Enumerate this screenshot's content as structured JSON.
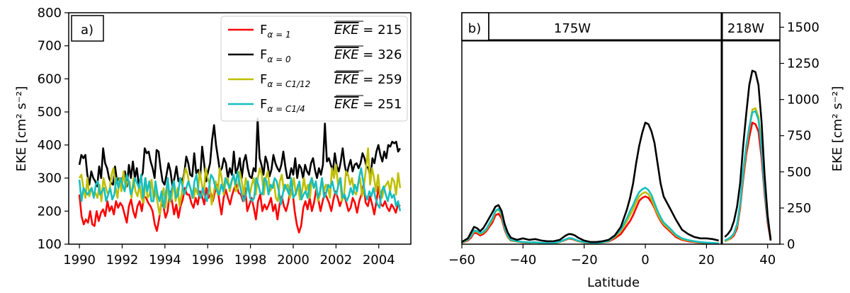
{
  "colors": {
    "red": "#ff0000",
    "black": "#000000",
    "olive": "#bfbf00",
    "cyan": "#17bebf"
  },
  "chart_data": [
    {
      "type": "line",
      "panel_label": "a)",
      "ylabel": "EKE [cm² s⁻²]",
      "xlim": [
        1989.5,
        2005.5
      ],
      "ylim": [
        100,
        800
      ],
      "xticks": [
        1990,
        1992,
        1994,
        1996,
        1998,
        2000,
        2002,
        2004
      ],
      "yticks": [
        100,
        200,
        300,
        400,
        500,
        600,
        700,
        800
      ],
      "legend_position": "top-right",
      "series": [
        {
          "name": "F_{α=1}",
          "sub": "α = 1",
          "stat": "EKE = 215",
          "color": "#ff0000",
          "values": [
            250,
            185,
            160,
            175,
            165,
            200,
            160,
            155,
            200,
            170,
            195,
            205,
            185,
            230,
            200,
            215,
            190,
            230,
            210,
            225,
            215,
            190,
            165,
            215,
            235,
            200,
            180,
            215,
            230,
            200,
            245,
            240,
            225,
            215,
            200,
            160,
            140,
            175,
            220,
            215,
            180,
            200,
            260,
            230,
            190,
            220,
            180,
            215,
            235,
            270,
            250,
            250,
            225,
            210,
            240,
            220,
            260,
            245,
            220,
            270,
            240,
            255,
            230,
            260,
            280,
            230,
            190,
            240,
            265,
            240,
            220,
            250,
            270,
            280,
            255,
            250,
            230,
            270,
            200,
            220,
            240,
            210,
            175,
            230,
            250,
            200,
            220,
            205,
            220,
            240,
            200,
            220,
            175,
            220,
            245,
            215,
            200,
            225,
            265,
            260,
            200,
            160,
            135,
            155,
            210,
            230,
            205,
            240,
            200,
            225,
            265,
            235,
            200,
            230,
            255,
            240,
            225,
            200,
            235,
            260,
            240,
            215,
            235,
            250,
            225,
            200,
            210,
            240,
            225,
            195,
            230,
            250,
            280,
            225,
            215,
            245,
            220,
            190,
            230,
            275,
            220,
            215,
            230,
            210,
            200,
            220,
            210,
            195,
            220,
            215
          ]
        },
        {
          "name": "F_{α=0}",
          "sub": "α = 0",
          "stat": "EKE = 326",
          "color": "#000000",
          "values": [
            340,
            370,
            360,
            370,
            310,
            280,
            320,
            300,
            290,
            275,
            335,
            300,
            390,
            345,
            330,
            300,
            285,
            280,
            335,
            290,
            300,
            285,
            305,
            320,
            275,
            340,
            300,
            350,
            300,
            330,
            280,
            300,
            315,
            390,
            375,
            380,
            350,
            330,
            300,
            385,
            380,
            330,
            290,
            280,
            310,
            345,
            320,
            275,
            300,
            335,
            290,
            300,
            290,
            315,
            365,
            345,
            310,
            305,
            375,
            315,
            325,
            300,
            395,
            345,
            290,
            320,
            345,
            415,
            460,
            400,
            360,
            320,
            330,
            360,
            345,
            300,
            330,
            310,
            380,
            315,
            330,
            360,
            300,
            350,
            370,
            330,
            305,
            300,
            330,
            320,
            480,
            360,
            340,
            310,
            365,
            345,
            305,
            325,
            370,
            345,
            330,
            320,
            340,
            380,
            335,
            300,
            300,
            330,
            310,
            360,
            300,
            340,
            330,
            300,
            340,
            320,
            310,
            345,
            360,
            325,
            300,
            330,
            310,
            340,
            465,
            350,
            360,
            340,
            320,
            375,
            335,
            320,
            350,
            390,
            340,
            310,
            335,
            355,
            320,
            340,
            345,
            330,
            345,
            375,
            360,
            335,
            330,
            300,
            360,
            345,
            380,
            400,
            370,
            350,
            380,
            360,
            400,
            395,
            410,
            405,
            410,
            380,
            390
          ]
        },
        {
          "name": "F_{α=C1/12}",
          "sub": "α = C1/12",
          "stat": "EKE = 259",
          "color": "#bfbf00",
          "values": [
            300,
            310,
            270,
            240,
            300,
            245,
            270,
            250,
            255,
            240,
            280,
            230,
            300,
            275,
            255,
            260,
            310,
            330,
            275,
            240,
            300,
            260,
            320,
            270,
            290,
            290,
            240,
            300,
            260,
            245,
            280,
            240,
            225,
            300,
            240,
            250,
            295,
            235,
            260,
            225,
            190,
            230,
            270,
            210,
            290,
            225,
            240,
            290,
            230,
            270,
            215,
            250,
            300,
            330,
            310,
            275,
            260,
            240,
            270,
            250,
            320,
            285,
            250,
            330,
            300,
            280,
            220,
            255,
            290,
            250,
            330,
            300,
            250,
            290,
            300,
            260,
            290,
            310,
            260,
            270,
            320,
            290,
            250,
            300,
            270,
            250,
            280,
            300,
            250,
            300,
            330,
            310,
            250,
            300,
            320,
            260,
            270,
            290,
            240,
            230,
            290,
            310,
            260,
            275,
            280,
            240,
            265,
            300,
            250,
            280,
            235,
            255,
            300,
            260,
            280,
            240,
            300,
            270,
            285,
            230,
            250,
            300,
            260,
            280,
            270,
            240,
            330,
            300,
            340,
            280,
            300,
            230,
            250,
            320,
            310,
            280,
            300,
            260,
            250,
            280,
            300,
            245,
            280,
            330,
            390,
            280,
            330,
            300,
            260,
            310,
            250,
            240,
            270,
            280,
            290,
            260,
            300,
            290,
            250,
            315,
            270
          ]
        },
        {
          "name": "F_{α=C1/4}",
          "sub": "α = C1/4",
          "stat": "EKE = 251",
          "color": "#17bebf",
          "values": [
            295,
            230,
            270,
            260,
            250,
            260,
            270,
            240,
            280,
            290,
            250,
            260,
            270,
            230,
            250,
            270,
            235,
            250,
            300,
            270,
            300,
            280,
            260,
            310,
            290,
            250,
            270,
            300,
            285,
            270,
            310,
            240,
            300,
            260,
            290,
            230,
            230,
            290,
            250,
            230,
            260,
            210,
            250,
            300,
            230,
            270,
            290,
            240,
            250,
            300,
            280,
            250,
            270,
            290,
            270,
            240,
            290,
            310,
            255,
            240,
            270,
            245,
            230,
            270,
            310,
            300,
            275,
            260,
            250,
            280,
            260,
            300,
            285,
            270,
            290,
            310,
            280,
            320,
            280,
            250,
            230,
            250,
            290,
            240,
            230,
            240,
            300,
            280,
            255,
            250,
            300,
            290,
            250,
            280,
            270,
            300,
            290,
            260,
            220,
            255,
            280,
            265,
            250,
            300,
            240,
            250,
            270,
            290,
            235,
            250,
            260,
            240,
            280,
            300,
            270,
            290,
            240,
            260,
            300,
            240,
            255,
            280,
            270,
            290,
            260,
            250,
            280,
            300,
            240,
            250,
            230,
            245,
            270,
            250,
            280,
            260,
            300,
            330,
            290,
            250,
            235,
            260,
            245,
            270,
            240,
            220,
            210,
            260,
            275,
            250,
            230,
            260,
            240,
            250,
            215,
            230,
            200
          ]
        }
      ]
    },
    {
      "type": "line",
      "panel_label": "b)",
      "section_labels": [
        "175W",
        "218W"
      ],
      "xlabel": "Latitude",
      "ylabel": "EKE [cm² s⁻²]",
      "xlim": [
        -60,
        44
      ],
      "ylim": [
        0,
        1600
      ],
      "xticks": [
        -60,
        -40,
        -20,
        0,
        20,
        40
      ],
      "yticks": [
        0,
        250,
        500,
        750,
        1000,
        1250,
        1500
      ],
      "divider_lat": 25,
      "series_175W": {
        "lat": [
          -60,
          -58,
          -57,
          -56,
          -55,
          -54,
          -53,
          -52,
          -50,
          -49,
          -48,
          -47,
          -46,
          -45,
          -44,
          -42,
          -40,
          -38,
          -36,
          -34,
          -32,
          -30,
          -28,
          -26,
          -25,
          -24,
          -23,
          -22,
          -20,
          -18,
          -16,
          -14,
          -12,
          -10,
          -8,
          -6,
          -5,
          -4,
          -3,
          -2,
          -1,
          0,
          1,
          2,
          3,
          4,
          5,
          6,
          8,
          10,
          12,
          14,
          16,
          18,
          20,
          22,
          24
        ],
        "red": [
          10,
          25,
          45,
          80,
          75,
          60,
          70,
          90,
          150,
          200,
          210,
          180,
          100,
          50,
          25,
          18,
          12,
          10,
          12,
          8,
          5,
          5,
          15,
          30,
          38,
          35,
          28,
          20,
          12,
          8,
          8,
          12,
          18,
          40,
          70,
          130,
          160,
          200,
          250,
          300,
          320,
          330,
          320,
          290,
          250,
          200,
          160,
          130,
          90,
          50,
          30,
          20,
          15,
          10,
          8,
          5,
          3
        ],
        "black": [
          15,
          40,
          80,
          120,
          110,
          90,
          110,
          145,
          220,
          260,
          270,
          230,
          140,
          80,
          45,
          30,
          40,
          30,
          35,
          25,
          20,
          20,
          30,
          60,
          70,
          68,
          60,
          45,
          25,
          15,
          15,
          20,
          30,
          60,
          120,
          240,
          320,
          420,
          560,
          680,
          770,
          840,
          830,
          780,
          700,
          560,
          420,
          330,
          250,
          170,
          100,
          70,
          50,
          40,
          40,
          35,
          25
        ],
        "olive": [
          10,
          30,
          55,
          90,
          85,
          70,
          80,
          100,
          170,
          225,
          240,
          200,
          110,
          55,
          28,
          18,
          14,
          11,
          12,
          8,
          6,
          6,
          16,
          32,
          40,
          38,
          30,
          22,
          13,
          9,
          8,
          12,
          20,
          50,
          90,
          160,
          200,
          240,
          290,
          330,
          350,
          360,
          345,
          310,
          260,
          210,
          170,
          140,
          100,
          60,
          35,
          25,
          18,
          12,
          10,
          8,
          5
        ],
        "cyan": [
          12,
          32,
          58,
          95,
          90,
          75,
          85,
          105,
          180,
          230,
          245,
          210,
          115,
          58,
          30,
          20,
          15,
          12,
          13,
          9,
          7,
          7,
          17,
          34,
          42,
          40,
          32,
          24,
          14,
          10,
          9,
          13,
          22,
          55,
          100,
          180,
          230,
          270,
          320,
          360,
          380,
          390,
          375,
          340,
          285,
          230,
          185,
          150,
          110,
          65,
          40,
          28,
          20,
          14,
          11,
          9,
          6
        ]
      },
      "series_218W": {
        "lat": [
          26,
          27,
          28,
          29,
          30,
          31,
          32,
          33,
          34,
          35,
          36,
          37,
          38,
          39,
          40,
          41
        ],
        "red": [
          20,
          30,
          40,
          60,
          110,
          250,
          450,
          620,
          740,
          840,
          830,
          780,
          600,
          350,
          150,
          30
        ],
        "black": [
          50,
          70,
          100,
          160,
          260,
          420,
          680,
          900,
          1100,
          1200,
          1190,
          1100,
          850,
          480,
          200,
          25
        ],
        "olive": [
          20,
          30,
          45,
          70,
          130,
          270,
          480,
          660,
          800,
          930,
          940,
          880,
          680,
          400,
          180,
          40
        ],
        "cyan": [
          25,
          35,
          50,
          75,
          140,
          280,
          500,
          680,
          810,
          910,
          920,
          860,
          660,
          380,
          170,
          45
        ]
      }
    }
  ]
}
